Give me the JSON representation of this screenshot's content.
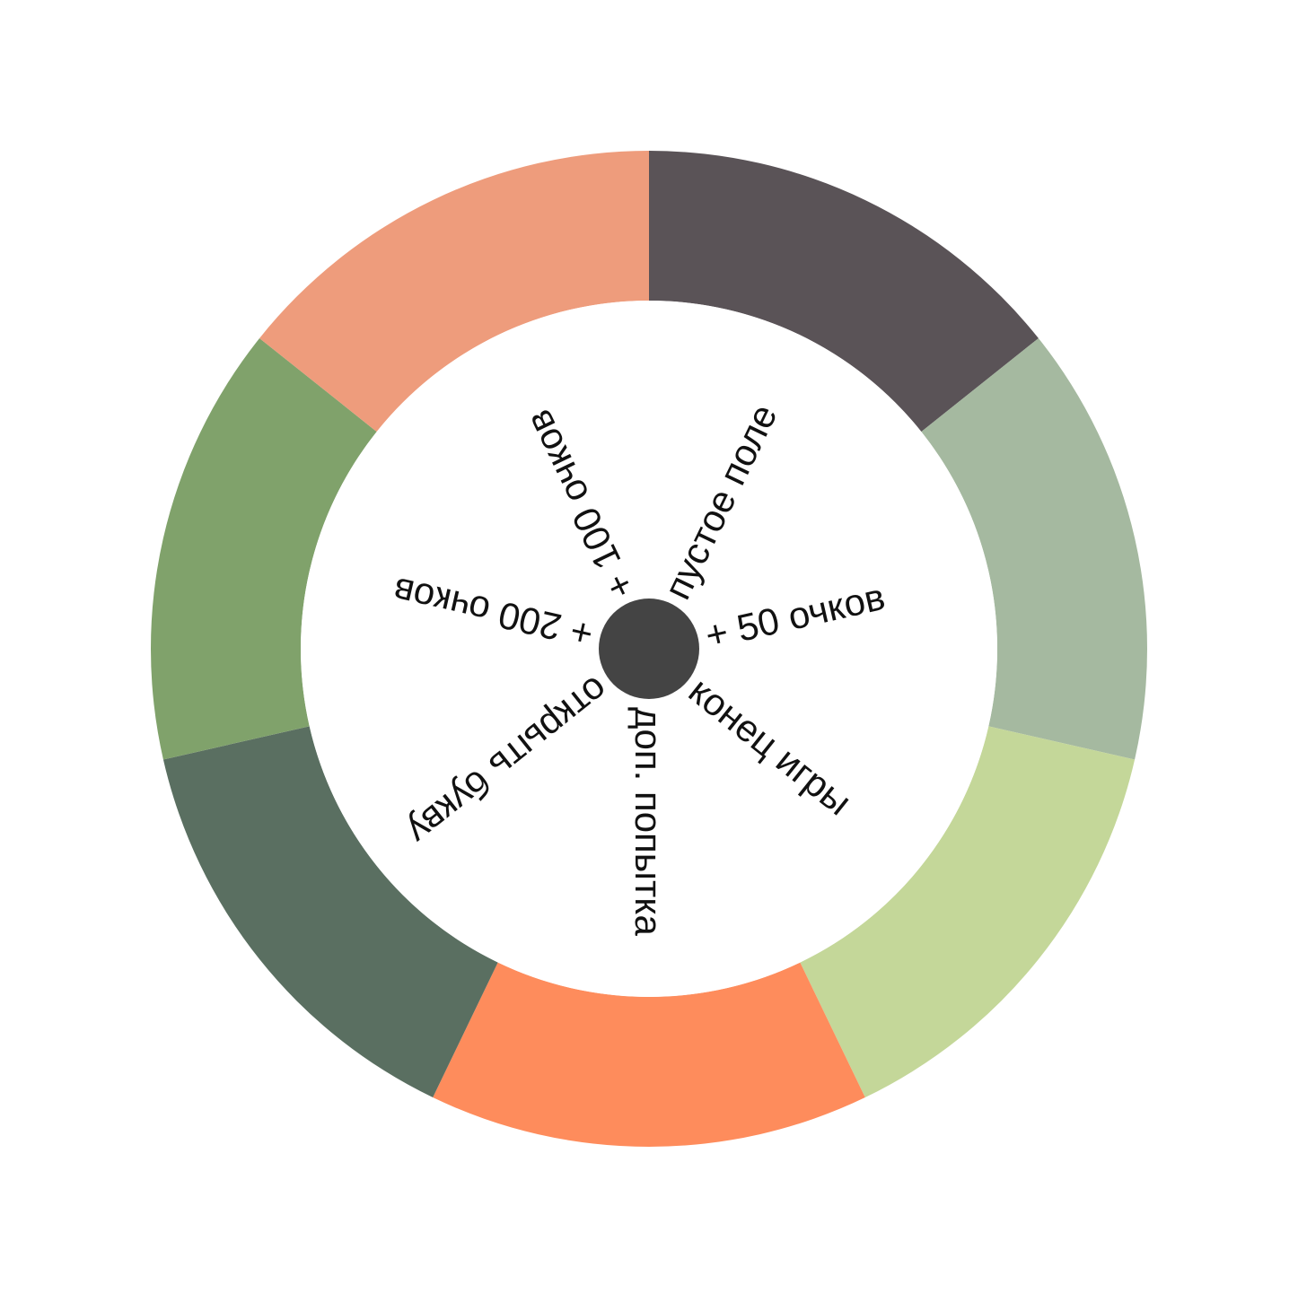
{
  "wheel": {
    "center_color": "#444444",
    "sectors": [
      {
        "label": "пустое поле",
        "color": "#5a5357"
      },
      {
        "label": "+ 50 очков",
        "color": "#a5b9a0"
      },
      {
        "label": "конец игры",
        "color": "#c4d799"
      },
      {
        "label": "доп. попытка",
        "color": "#fe8c5c"
      },
      {
        "label": "открыть букву",
        "color": "#5a6f61"
      },
      {
        "label": "+ 200 очков",
        "color": "#80a26b"
      },
      {
        "label": "+ 100 очков",
        "color": "#ee9c7c"
      }
    ]
  }
}
